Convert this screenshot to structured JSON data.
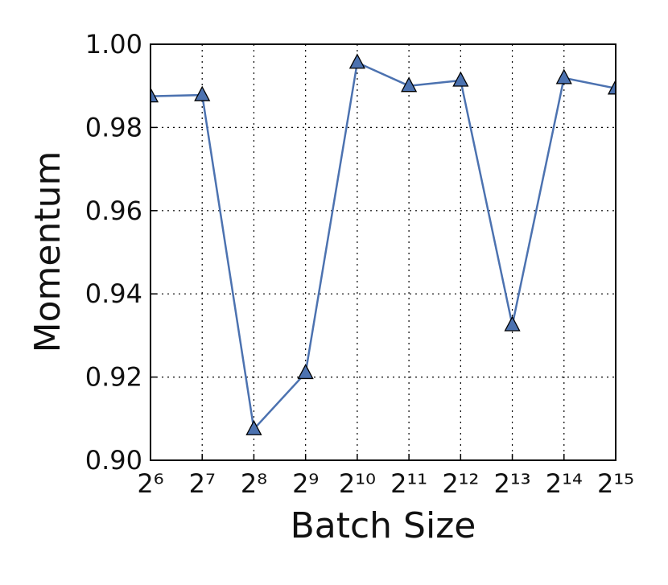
{
  "chart_data": {
    "type": "line",
    "xlabel": "Batch Size",
    "ylabel": "Momentum",
    "x": [
      64,
      128,
      256,
      512,
      1024,
      2048,
      4096,
      8192,
      16384,
      32768
    ],
    "xscale": "log",
    "xlog_base": 2,
    "series": [
      {
        "color": "#4c72b0",
        "marker": "triangle",
        "values": [
          0.9875,
          0.9878,
          0.9075,
          0.921,
          0.9956,
          0.99,
          0.9913,
          0.9325,
          0.9919,
          0.9894
        ]
      }
    ],
    "xlim": [
      64,
      32768
    ],
    "xticks": [
      {
        "value": 64,
        "label": "2⁶"
      },
      {
        "value": 128,
        "label": "2⁷"
      },
      {
        "value": 256,
        "label": "2⁸"
      },
      {
        "value": 512,
        "label": "2⁹"
      },
      {
        "value": 1024,
        "label": "2¹⁰"
      },
      {
        "value": 2048,
        "label": "2¹¹"
      },
      {
        "value": 4096,
        "label": "2¹²"
      },
      {
        "value": 8192,
        "label": "2¹³"
      },
      {
        "value": 16384,
        "label": "2¹⁴"
      },
      {
        "value": 32768,
        "label": "2¹⁵"
      }
    ],
    "ylim": [
      0.9,
      1.0
    ],
    "yticks": [
      {
        "value": 0.9,
        "label": "0.90"
      },
      0.92,
      0.94,
      0.96,
      0.98,
      {
        "value": 1.0,
        "label": "1.00"
      }
    ],
    "grid": true
  }
}
